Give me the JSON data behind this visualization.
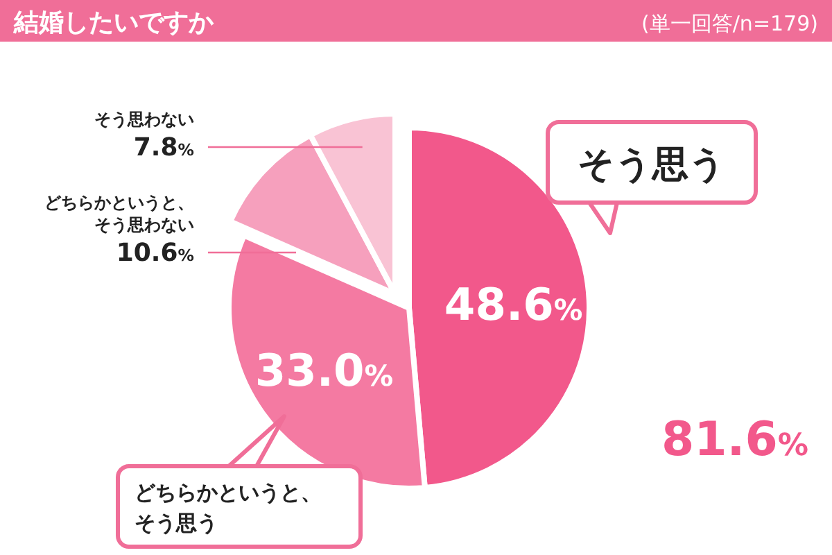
{
  "chart_data": {
    "type": "pie",
    "title": "結婚したいですか",
    "subtitle": "(単一回答/n=179)",
    "categories": [
      "そう思う",
      "どちらかというと、そう思う",
      "どちらかというと、そう思わない",
      "そう思わない"
    ],
    "values": [
      48.6,
      33.0,
      10.6,
      7.8
    ],
    "colors": [
      "#f2588b",
      "#f47aa2",
      "#f6a0bd",
      "#f9c3d4"
    ],
    "value_labels": [
      "48.6%",
      "33.0%",
      "10.6%",
      "7.8%"
    ],
    "annotations": [
      "81.6%"
    ]
  }
}
